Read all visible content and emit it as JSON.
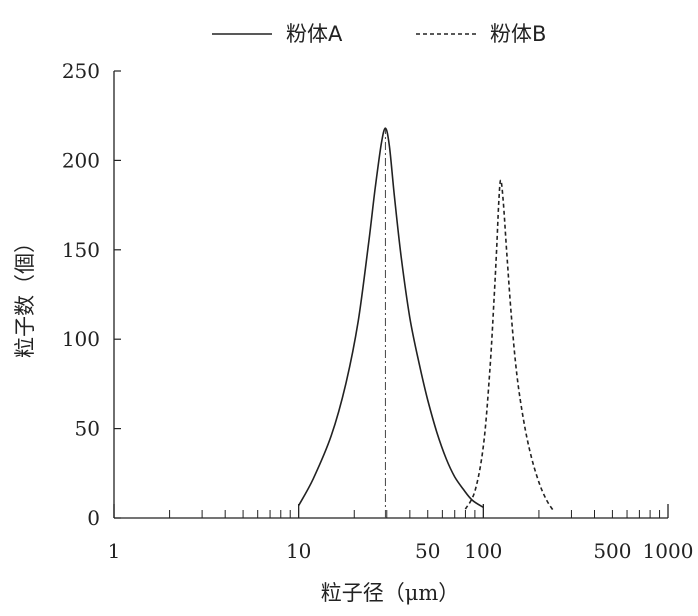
{
  "chart_data": {
    "type": "line",
    "xscale": "log",
    "xlim": [
      1,
      1000
    ],
    "ylim": [
      0,
      250
    ],
    "xlabel": "粒子径（μm）",
    "ylabel": "粒子数（個）",
    "x_ticks": [
      1,
      10,
      50,
      100,
      500,
      1000
    ],
    "x_tick_labels": [
      "1",
      "10",
      "50",
      "100",
      "500",
      "1000"
    ],
    "y_ticks": [
      0,
      50,
      100,
      150,
      200,
      250
    ],
    "y_tick_labels": [
      "0",
      "50",
      "100",
      "150",
      "200",
      "250"
    ],
    "grid": false,
    "legend_position": "top",
    "series": [
      {
        "name": "粉体A",
        "style": "solid",
        "color": "#222222",
        "x": [
          10,
          12,
          15,
          18,
          21,
          24,
          26,
          28,
          29.5,
          31,
          33,
          36,
          40,
          45,
          50,
          56,
          63,
          70,
          78,
          87,
          100
        ],
        "y": [
          7,
          22,
          46,
          75,
          110,
          155,
          185,
          209,
          218,
          208,
          180,
          145,
          112,
          86,
          66,
          48,
          33,
          23,
          16,
          10,
          6
        ]
      },
      {
        "name": "粉体B",
        "style": "dashed",
        "color": "#222222",
        "x": [
          80,
          90,
          100,
          108,
          114,
          118,
          121,
          124,
          128,
          134,
          142,
          152,
          165,
          180,
          200,
          220,
          240
        ],
        "y": [
          5,
          15,
          40,
          80,
          120,
          150,
          175,
          189,
          178,
          148,
          112,
          80,
          55,
          36,
          20,
          10,
          4
        ]
      }
    ],
    "reference_line": {
      "x": 29.5,
      "style": "dash-dot"
    }
  }
}
